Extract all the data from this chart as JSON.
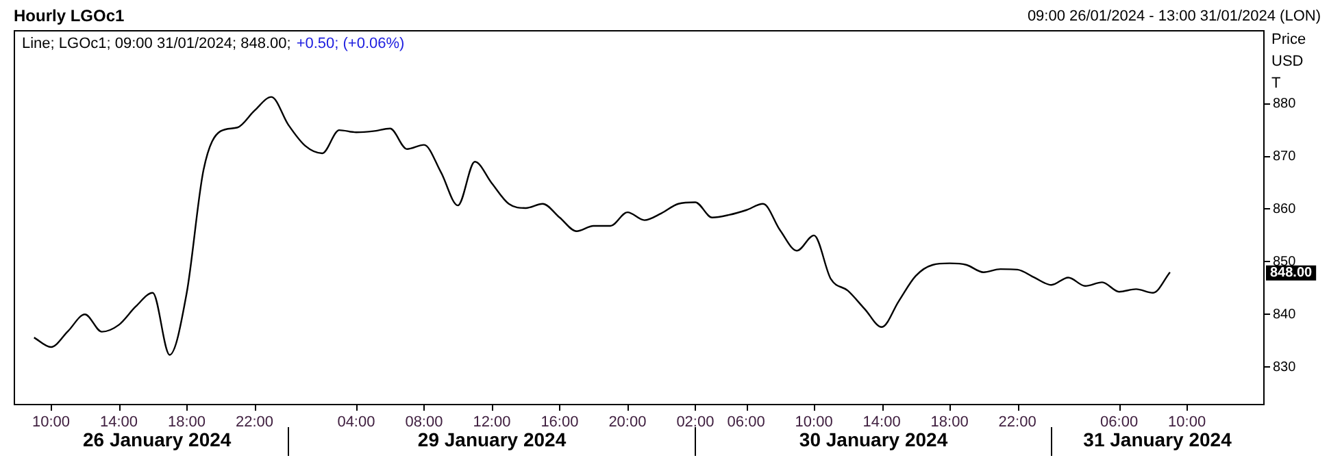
{
  "chart_data": {
    "type": "line",
    "title": "Hourly LGOc1",
    "subtitle": "09:00 26/01/2024 - 13:00 31/01/2024 (LON)",
    "ylabel": "Price USD T",
    "annotations": [
      "Line; LGOc1; 09:00 31/01/2024; 848.00;",
      "+0.50; (+0.06%)",
      "848.00",
      "26 January 2024",
      "29 January 2024",
      "30 January 2024",
      "31 January 2024"
    ],
    "categories": [
      null,
      "10:00",
      null,
      null,
      null,
      "14:00",
      null,
      null,
      null,
      "18:00",
      null,
      null,
      null,
      "22:00",
      null,
      null,
      null,
      null,
      null,
      "04:00",
      null,
      null,
      null,
      "08:00",
      null,
      null,
      null,
      "12:00",
      null,
      null,
      null,
      "16:00",
      null,
      null,
      null,
      "20:00",
      null,
      null,
      null,
      "02:00",
      null,
      null,
      "06:00",
      null,
      null,
      null,
      "10:00",
      null,
      null,
      null,
      "14:00",
      null,
      null,
      null,
      "18:00",
      null,
      null,
      null,
      "22:00",
      null,
      null,
      null,
      null,
      null,
      "06:00",
      null,
      null,
      null,
      "10:00",
      null,
      null,
      null,
      null
    ],
    "values": [
      835.6,
      833.8,
      836.8,
      840.0,
      836.7,
      838.0,
      841.5,
      844.1,
      832.3,
      844.0,
      867.5,
      874.8,
      875.5,
      878.7,
      881.3,
      876.0,
      872.0,
      870.6,
      875.0,
      874.6,
      874.8,
      875.3,
      871.4,
      872.2,
      867.0,
      860.7,
      869.0,
      864.9,
      861.0,
      860.2,
      861.0,
      858.4,
      855.8,
      856.8,
      856.8,
      859.4,
      857.9,
      859.2,
      861.0,
      861.3,
      858.4,
      858.9,
      859.8,
      861.0,
      856.0,
      852.1,
      855.0,
      846.7,
      844.5,
      841.0,
      837.6,
      842.5,
      847.3,
      849.4,
      849.7,
      849.4,
      848.0,
      848.6,
      848.5,
      847.0,
      845.6,
      847.0,
      845.4,
      846.1,
      844.3,
      844.8,
      844.1,
      848.0,
      null,
      null,
      null,
      null,
      null
    ],
    "color": "#000000",
    "marker": "none",
    "line_style": "solid",
    "legend": false,
    "ylim": [
      823,
      894
    ],
    "yticks": [
      830,
      840,
      850,
      860,
      870,
      880
    ]
  }
}
